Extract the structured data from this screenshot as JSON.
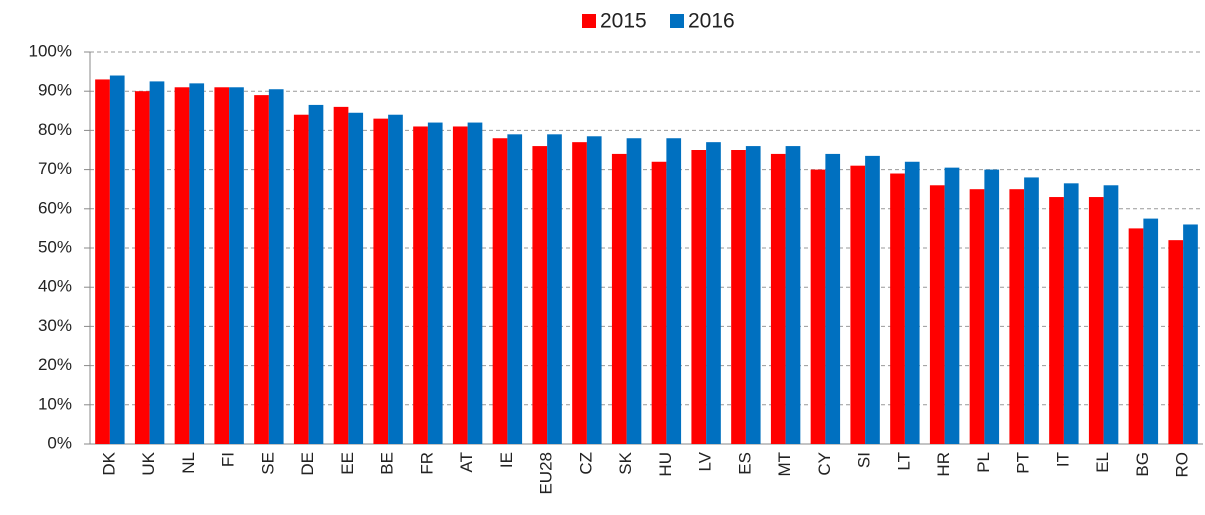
{
  "chart_data": {
    "type": "bar",
    "categories": [
      "DK",
      "UK",
      "NL",
      "FI",
      "SE",
      "DE",
      "EE",
      "BE",
      "FR",
      "AT",
      "IE",
      "EU28",
      "CZ",
      "SK",
      "HU",
      "LV",
      "ES",
      "MT",
      "CY",
      "SI",
      "LT",
      "HR",
      "PL",
      "PT",
      "IT",
      "EL",
      "BG",
      "RO"
    ],
    "series": [
      {
        "name": "2015",
        "color": "#ff0000",
        "values": [
          93,
          90,
          91,
          91,
          89,
          84,
          86,
          83,
          81,
          81,
          78,
          76,
          77,
          74,
          72,
          75,
          75,
          74,
          70,
          71,
          69,
          66,
          65,
          65,
          63,
          63,
          55,
          52
        ]
      },
      {
        "name": "2016",
        "color": "#0070c0",
        "values": [
          94,
          92.5,
          92,
          91,
          90.5,
          86.5,
          84.5,
          84,
          82,
          82,
          79,
          79,
          78.5,
          78,
          78,
          77,
          76,
          76,
          74,
          73.5,
          72,
          70.5,
          70,
          68,
          66.5,
          66,
          57.5,
          56
        ]
      }
    ],
    "ylim": [
      0,
      100
    ],
    "yticks": [
      {
        "value": 0,
        "label": "0%"
      },
      {
        "value": 10,
        "label": "10%"
      },
      {
        "value": 20,
        "label": "20%"
      },
      {
        "value": 30,
        "label": "30%"
      },
      {
        "value": 40,
        "label": "40%"
      },
      {
        "value": 50,
        "label": "50%"
      },
      {
        "value": 60,
        "label": "60%"
      },
      {
        "value": 70,
        "label": "70%"
      },
      {
        "value": 80,
        "label": "80%"
      },
      {
        "value": 90,
        "label": "90%"
      },
      {
        "value": 100,
        "label": "100%"
      }
    ],
    "grid": true,
    "legend": "top"
  }
}
